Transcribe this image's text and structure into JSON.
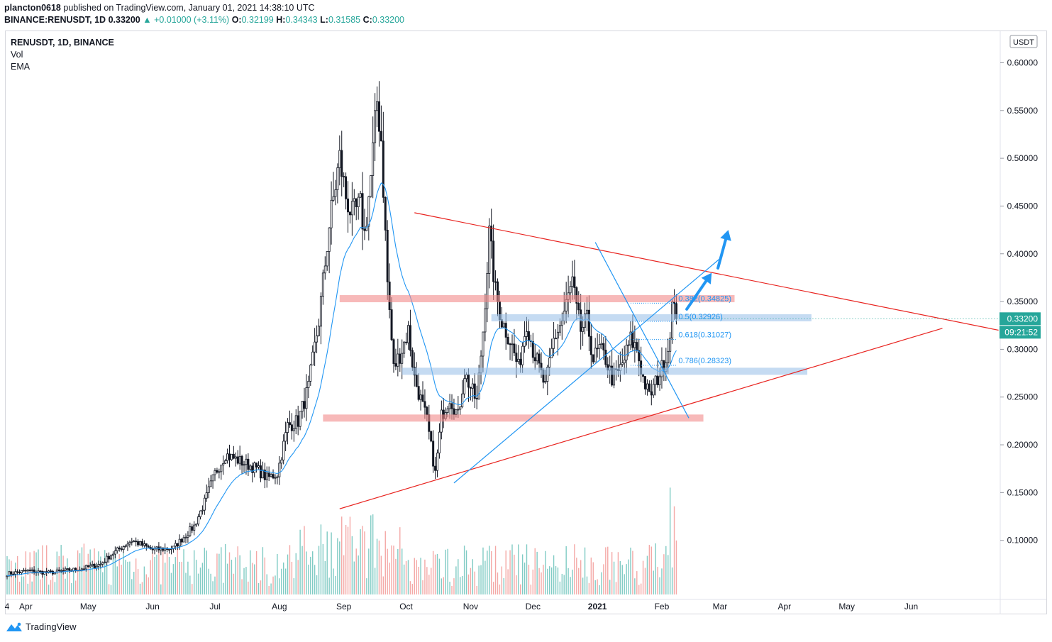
{
  "header": {
    "user": "plancton0618",
    "published": "published on TradingView.com, January 01, 2021 14:38:10 UTC",
    "symbol": "BINANCE:RENUSDT, 1D",
    "price": "0.33200",
    "change": "+0.01000 (+3.11%)",
    "o_label": "O:",
    "o": "0.32199",
    "h_label": "H:",
    "h": "0.34343",
    "l_label": "L:",
    "l": "0.31585",
    "c_label": "C:",
    "c": "0.33200"
  },
  "legend": {
    "symbol": "RENUSDT, 1D, BINANCE",
    "vol": "Vol",
    "ema": "EMA"
  },
  "footer": {
    "brand": "TradingView"
  },
  "colors": {
    "up": "#26a69a",
    "down": "#ef5350",
    "candle": "#131722",
    "ema": "#2196f3",
    "trend": "#e8231f",
    "zone_red": "#f28b8b",
    "zone_blue": "#9fc3ea",
    "arrow": "#2196f3"
  },
  "chart_data": {
    "type": "candlestick",
    "title": "RENUSDT, 1D, BINANCE",
    "currency_label": "USDT",
    "ylim": [
      0.05,
      0.61
    ],
    "y_ticks": [
      0.1,
      0.15,
      0.2,
      0.25,
      0.3,
      0.35,
      0.4,
      0.45,
      0.5,
      0.55,
      0.6
    ],
    "x_ticks": [
      {
        "label": "4",
        "day": 0
      },
      {
        "label": "Apr",
        "day": 9
      },
      {
        "label": "May",
        "day": 39
      },
      {
        "label": "Jun",
        "day": 70
      },
      {
        "label": "Jul",
        "day": 100
      },
      {
        "label": "Aug",
        "day": 131
      },
      {
        "label": "Sep",
        "day": 162
      },
      {
        "label": "Oct",
        "day": 192
      },
      {
        "label": "Nov",
        "day": 223
      },
      {
        "label": "Dec",
        "day": 253
      },
      {
        "label": "2021",
        "day": 284
      },
      {
        "label": "Feb",
        "day": 315
      },
      {
        "label": "Mar",
        "day": 343
      },
      {
        "label": "Apr",
        "day": 374
      },
      {
        "label": "May",
        "day": 404
      },
      {
        "label": "Jun",
        "day": 435
      }
    ],
    "price_path": [
      [
        0,
        0.065
      ],
      [
        10,
        0.068
      ],
      [
        20,
        0.066
      ],
      [
        35,
        0.07
      ],
      [
        45,
        0.075
      ],
      [
        50,
        0.085
      ],
      [
        60,
        0.1
      ],
      [
        70,
        0.09
      ],
      [
        80,
        0.092
      ],
      [
        90,
        0.115
      ],
      [
        95,
        0.14
      ],
      [
        100,
        0.17
      ],
      [
        105,
        0.19
      ],
      [
        110,
        0.185
      ],
      [
        120,
        0.175
      ],
      [
        125,
        0.165
      ],
      [
        130,
        0.17
      ],
      [
        135,
        0.22
      ],
      [
        140,
        0.225
      ],
      [
        145,
        0.26
      ],
      [
        150,
        0.33
      ],
      [
        155,
        0.43
      ],
      [
        160,
        0.5
      ],
      [
        163,
        0.46
      ],
      [
        166,
        0.44
      ],
      [
        170,
        0.45
      ],
      [
        172,
        0.42
      ],
      [
        175,
        0.48
      ],
      [
        178,
        0.56
      ],
      [
        180,
        0.52
      ],
      [
        183,
        0.37
      ],
      [
        186,
        0.28
      ],
      [
        190,
        0.3
      ],
      [
        193,
        0.32
      ],
      [
        196,
        0.27
      ],
      [
        200,
        0.24
      ],
      [
        202,
        0.225
      ],
      [
        206,
        0.17
      ],
      [
        209,
        0.23
      ],
      [
        213,
        0.25
      ],
      [
        217,
        0.23
      ],
      [
        220,
        0.275
      ],
      [
        223,
        0.26
      ],
      [
        226,
        0.245
      ],
      [
        229,
        0.32
      ],
      [
        232,
        0.42
      ],
      [
        235,
        0.36
      ],
      [
        238,
        0.33
      ],
      [
        242,
        0.31
      ],
      [
        246,
        0.28
      ],
      [
        250,
        0.33
      ],
      [
        253,
        0.3
      ],
      [
        256,
        0.28
      ],
      [
        259,
        0.26
      ],
      [
        263,
        0.31
      ],
      [
        267,
        0.33
      ],
      [
        270,
        0.355
      ],
      [
        272,
        0.37
      ],
      [
        274,
        0.34
      ],
      [
        276,
        0.32
      ],
      [
        279,
        0.33
      ],
      [
        282,
        0.29
      ],
      [
        285,
        0.3
      ],
      [
        288,
        0.29
      ],
      [
        291,
        0.27
      ],
      [
        294,
        0.275
      ],
      [
        297,
        0.29
      ],
      [
        300,
        0.31
      ],
      [
        303,
        0.3
      ],
      [
        306,
        0.27
      ],
      [
        309,
        0.25
      ],
      [
        312,
        0.265
      ],
      [
        315,
        0.28
      ],
      [
        318,
        0.3
      ],
      [
        320,
        0.345
      ],
      [
        322,
        0.332
      ]
    ],
    "last_price": "0.33200",
    "countdown": "09:21:52",
    "fibonacci": [
      {
        "label": "0.382(0.34825)",
        "value": 0.34825
      },
      {
        "label": "0.5(0.32926)",
        "value": 0.32926
      },
      {
        "label": "0.618(0.31027)",
        "value": 0.31027
      },
      {
        "label": "0.786(0.28323)",
        "value": 0.28323
      }
    ],
    "zones": [
      {
        "color": "red",
        "price": 0.353,
        "from_day": 160,
        "to_day": 350
      },
      {
        "color": "blue",
        "price": 0.333,
        "from_day": 233,
        "to_day": 387
      },
      {
        "color": "blue",
        "price": 0.277,
        "from_day": 190,
        "to_day": 385
      },
      {
        "color": "red",
        "price": 0.228,
        "from_day": 152,
        "to_day": 335
      }
    ],
    "trendlines": [
      {
        "color": "red",
        "from": [
          196,
          0.443
        ],
        "to": [
          477,
          0.32
        ]
      },
      {
        "color": "red",
        "from": [
          160,
          0.133
        ],
        "to": [
          450,
          0.322
        ]
      },
      {
        "color": "blue",
        "from": [
          215,
          0.16
        ],
        "to": [
          343,
          0.395
        ]
      },
      {
        "color": "blue",
        "from": [
          283,
          0.412
        ],
        "to": [
          328,
          0.228
        ]
      }
    ],
    "arrows": [
      {
        "from": [
          327,
          0.342
        ],
        "to": [
          339,
          0.38
        ]
      },
      {
        "from": [
          342,
          0.385
        ],
        "to": [
          347,
          0.425
        ]
      }
    ]
  }
}
